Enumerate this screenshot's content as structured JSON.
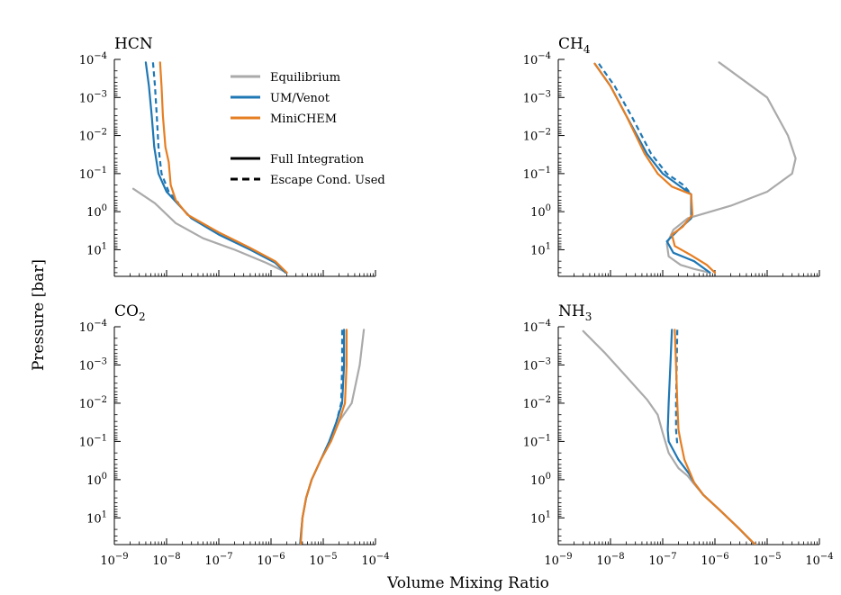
{
  "chart_data": [
    {
      "type": "line",
      "panel": "top-left",
      "title_base": "HCN",
      "title_sub": "",
      "xscale": "log",
      "yscale": "log",
      "y_inverted": true,
      "xlim": [
        1e-09,
        0.0001
      ],
      "ylim": [
        0.0001,
        50
      ],
      "series": [
        {
          "name": "Equilibrium",
          "style": "solid",
          "color": "#aaaaaa",
          "points": [
            [
              2.3e-09,
              0.25
            ],
            [
              6e-09,
              0.6
            ],
            [
              1.5e-08,
              2
            ],
            [
              5e-08,
              5
            ],
            [
              2e-07,
              10
            ],
            [
              8e-07,
              22
            ],
            [
              2e-06,
              40
            ]
          ]
        },
        {
          "name": "UM/Venot",
          "style": "solid",
          "color": "#1f77b4",
          "points": [
            [
              4e-09,
              0.00012
            ],
            [
              4.6e-09,
              0.0005
            ],
            [
              5.2e-09,
              0.003
            ],
            [
              5.8e-09,
              0.02
            ],
            [
              7e-09,
              0.1
            ],
            [
              1e-08,
              0.3
            ],
            [
              1.6e-08,
              0.6
            ],
            [
              3e-08,
              1.5
            ],
            [
              1e-07,
              4
            ],
            [
              4e-07,
              10
            ],
            [
              1.2e-06,
              22
            ],
            [
              1.9e-06,
              40
            ]
          ]
        },
        {
          "name": "UM/Venot",
          "style": "dashed",
          "color": "#1f77b4",
          "points": [
            [
              5.5e-09,
              0.00012
            ],
            [
              6e-09,
              0.0005
            ],
            [
              6.5e-09,
              0.003
            ],
            [
              7e-09,
              0.02
            ],
            [
              8e-09,
              0.1
            ],
            [
              1.1e-08,
              0.3
            ],
            [
              1.7e-08,
              0.6
            ]
          ]
        },
        {
          "name": "MiniCHEM",
          "style": "solid",
          "color": "#e67e22",
          "points": [
            [
              7.5e-09,
              0.00012
            ],
            [
              8e-09,
              0.0005
            ],
            [
              8.5e-09,
              0.003
            ],
            [
              9.5e-09,
              0.02
            ],
            [
              1.1e-08,
              0.05
            ],
            [
              1.2e-08,
              0.2
            ],
            [
              1.5e-08,
              0.5
            ],
            [
              2.5e-08,
              1.2
            ],
            [
              1e-07,
              3.5
            ],
            [
              4e-07,
              9
            ],
            [
              1.2e-06,
              20
            ],
            [
              2e-06,
              40
            ]
          ]
        }
      ]
    },
    {
      "type": "line",
      "panel": "top-right",
      "title_base": "CH",
      "title_sub": "4",
      "xscale": "log",
      "yscale": "log",
      "y_inverted": true,
      "xlim": [
        1e-09,
        0.0001
      ],
      "ylim": [
        0.0001,
        50
      ],
      "series": [
        {
          "name": "Equilibrium",
          "style": "solid",
          "color": "#aaaaaa",
          "points": [
            [
              1.2e-06,
              0.00012
            ],
            [
              1e-05,
              0.001
            ],
            [
              2.5e-05,
              0.01
            ],
            [
              3.5e-05,
              0.04
            ],
            [
              3e-05,
              0.1
            ],
            [
              1e-05,
              0.3
            ],
            [
              2e-06,
              0.7
            ],
            [
              3e-07,
              1.5
            ],
            [
              1.6e-07,
              3
            ],
            [
              1.2e-07,
              7
            ],
            [
              1.3e-07,
              15
            ],
            [
              2.2e-07,
              25
            ],
            [
              4e-07,
              32
            ],
            [
              8e-07,
              40
            ]
          ]
        },
        {
          "name": "UM/Venot",
          "style": "solid",
          "color": "#1f77b4",
          "points": [
            [
              5e-09,
              0.00013
            ],
            [
              1e-08,
              0.0005
            ],
            [
              2e-08,
              0.003
            ],
            [
              5e-08,
              0.03
            ],
            [
              1e-07,
              0.1
            ],
            [
              2e-07,
              0.2
            ],
            [
              3.5e-07,
              0.35
            ],
            [
              3.5e-07,
              1.5
            ],
            [
              2e-07,
              3
            ],
            [
              1.2e-07,
              6
            ],
            [
              1.6e-07,
              12
            ],
            [
              4e-07,
              20
            ],
            [
              8e-07,
              40
            ]
          ]
        },
        {
          "name": "UM/Venot",
          "style": "dashed",
          "color": "#1f77b4",
          "points": [
            [
              6e-09,
              0.00013
            ],
            [
              1.2e-08,
              0.0005
            ],
            [
              2.5e-08,
              0.003
            ],
            [
              6e-08,
              0.03
            ],
            [
              1.2e-07,
              0.1
            ],
            [
              2.5e-07,
              0.2
            ],
            [
              3.5e-07,
              0.35
            ]
          ]
        },
        {
          "name": "MiniCHEM",
          "style": "solid",
          "color": "#e67e22",
          "points": [
            [
              5e-09,
              0.00013
            ],
            [
              1e-08,
              0.0005
            ],
            [
              2e-08,
              0.003
            ],
            [
              4.5e-08,
              0.03
            ],
            [
              8e-08,
              0.1
            ],
            [
              1.5e-07,
              0.22
            ],
            [
              3.5e-07,
              0.35
            ],
            [
              3.7e-07,
              1.2
            ],
            [
              2.4e-07,
              2.5
            ],
            [
              1.5e-07,
              4
            ],
            [
              1.7e-07,
              8
            ],
            [
              3.5e-07,
              14
            ],
            [
              7e-07,
              25
            ],
            [
              1e-06,
              40
            ]
          ]
        }
      ]
    },
    {
      "type": "line",
      "panel": "bottom-left",
      "title_base": "CO",
      "title_sub": "2",
      "xscale": "log",
      "yscale": "log",
      "y_inverted": true,
      "xlim": [
        1e-09,
        0.0001
      ],
      "ylim": [
        0.0001,
        50
      ],
      "series": [
        {
          "name": "Equilibrium",
          "style": "solid",
          "color": "#aaaaaa",
          "points": [
            [
              6e-05,
              0.00012
            ],
            [
              5e-05,
              0.001
            ],
            [
              3.5e-05,
              0.01
            ],
            [
              2e-05,
              0.03
            ],
            [
              1.4e-05,
              0.1
            ],
            [
              9e-06,
              0.3
            ],
            [
              6e-06,
              1
            ],
            [
              4.7e-06,
              3
            ],
            [
              4e-06,
              10
            ],
            [
              3.6e-06,
              50
            ]
          ]
        },
        {
          "name": "UM/Venot",
          "style": "solid",
          "color": "#1f77b4",
          "points": [
            [
              2.5e-05,
              0.00012
            ],
            [
              2.5e-05,
              0.001
            ],
            [
              2.3e-05,
              0.01
            ],
            [
              1.8e-05,
              0.03
            ],
            [
              1.3e-05,
              0.1
            ],
            [
              9e-06,
              0.3
            ],
            [
              6e-06,
              1
            ],
            [
              4.7e-06,
              3
            ],
            [
              4e-06,
              10
            ],
            [
              3.6e-06,
              50
            ]
          ]
        },
        {
          "name": "UM/Venot",
          "style": "dashed",
          "color": "#1f77b4",
          "points": [
            [
              2.3e-05,
              0.00012
            ],
            [
              2.3e-05,
              0.001
            ],
            [
              2.2e-05,
              0.01
            ],
            [
              1.8e-05,
              0.03
            ]
          ]
        },
        {
          "name": "MiniCHEM",
          "style": "solid",
          "color": "#e67e22",
          "points": [
            [
              2.8e-05,
              0.00012
            ],
            [
              2.8e-05,
              0.001
            ],
            [
              2.6e-05,
              0.01
            ],
            [
              2e-05,
              0.03
            ],
            [
              1.4e-05,
              0.1
            ],
            [
              9e-06,
              0.3
            ],
            [
              6e-06,
              1
            ],
            [
              4.7e-06,
              3
            ],
            [
              4e-06,
              10
            ],
            [
              3.7e-06,
              50
            ]
          ]
        }
      ]
    },
    {
      "type": "line",
      "panel": "bottom-right",
      "title_base": "NH",
      "title_sub": "3",
      "xscale": "log",
      "yscale": "log",
      "y_inverted": true,
      "xlim": [
        1e-09,
        0.0001
      ],
      "ylim": [
        0.0001,
        50
      ],
      "series": [
        {
          "name": "Equilibrium",
          "style": "solid",
          "color": "#aaaaaa",
          "points": [
            [
              3e-09,
              0.00013
            ],
            [
              8e-09,
              0.0005
            ],
            [
              2e-08,
              0.002
            ],
            [
              5e-08,
              0.008
            ],
            [
              8e-08,
              0.02
            ],
            [
              1e-07,
              0.06
            ],
            [
              1.3e-07,
              0.2
            ],
            [
              2e-07,
              0.5
            ],
            [
              3e-07,
              0.8
            ],
            [
              3.8e-07,
              1.2
            ],
            [
              6e-07,
              2.5
            ],
            [
              1.2e-06,
              6
            ],
            [
              3e-06,
              20
            ],
            [
              5.8e-06,
              50
            ]
          ]
        },
        {
          "name": "UM/Venot",
          "style": "solid",
          "color": "#1f77b4",
          "points": [
            [
              1.5e-07,
              0.00012
            ],
            [
              1.4e-07,
              0.001
            ],
            [
              1.3e-07,
              0.01
            ],
            [
              1.25e-07,
              0.05
            ],
            [
              1.3e-07,
              0.1
            ],
            [
              2e-07,
              0.3
            ],
            [
              3.2e-07,
              0.7
            ],
            [
              4e-07,
              1.2
            ],
            [
              6e-07,
              2.5
            ],
            [
              1.2e-06,
              6
            ],
            [
              3e-06,
              20
            ],
            [
              5.8e-06,
              50
            ]
          ]
        },
        {
          "name": "UM/Venot",
          "style": "dashed",
          "color": "#1f77b4",
          "points": [
            [
              1.9e-07,
              0.00012
            ],
            [
              1.85e-07,
              0.001
            ],
            [
              1.8e-07,
              0.01
            ],
            [
              1.8e-07,
              0.05
            ],
            [
              1.9e-07,
              0.12
            ]
          ]
        },
        {
          "name": "MiniCHEM",
          "style": "solid",
          "color": "#e67e22",
          "points": [
            [
              1.7e-07,
              0.00012
            ],
            [
              1.8e-07,
              0.001
            ],
            [
              1.9e-07,
              0.01
            ],
            [
              2e-07,
              0.05
            ],
            [
              2.2e-07,
              0.1
            ],
            [
              2.6e-07,
              0.3
            ],
            [
              3.4e-07,
              0.7
            ],
            [
              4e-07,
              1.2
            ],
            [
              6e-07,
              2.5
            ],
            [
              1.2e-06,
              6
            ],
            [
              3e-06,
              20
            ],
            [
              5.9e-06,
              50
            ]
          ]
        }
      ]
    }
  ],
  "xlabel": "Volume Mixing Ratio",
  "ylabel": "Pressure [bar]",
  "x_tick_labels": [
    {
      "mant": "10",
      "exp": "−9"
    },
    {
      "mant": "10",
      "exp": "−8"
    },
    {
      "mant": "10",
      "exp": "−7"
    },
    {
      "mant": "10",
      "exp": "−6"
    },
    {
      "mant": "10",
      "exp": "−5"
    },
    {
      "mant": "10",
      "exp": "−4"
    }
  ],
  "y_tick_labels": [
    {
      "mant": "10",
      "exp": "−4"
    },
    {
      "mant": "10",
      "exp": "−3"
    },
    {
      "mant": "10",
      "exp": "−2"
    },
    {
      "mant": "10",
      "exp": "−1"
    },
    {
      "mant": "10",
      "exp": "0"
    },
    {
      "mant": "10",
      "exp": "1"
    }
  ],
  "legend": {
    "placement": "top-left panel, upper-middle",
    "color_entries": [
      {
        "label": "Equilibrium",
        "color": "#aaaaaa"
      },
      {
        "label": "UM/Venot",
        "color": "#1f77b4"
      },
      {
        "label": "MiniCHEM",
        "color": "#e67e22"
      }
    ],
    "style_entries": [
      {
        "label": "Full Integration",
        "style": "solid"
      },
      {
        "label": "Escape Cond. Used",
        "style": "dashed"
      }
    ]
  }
}
